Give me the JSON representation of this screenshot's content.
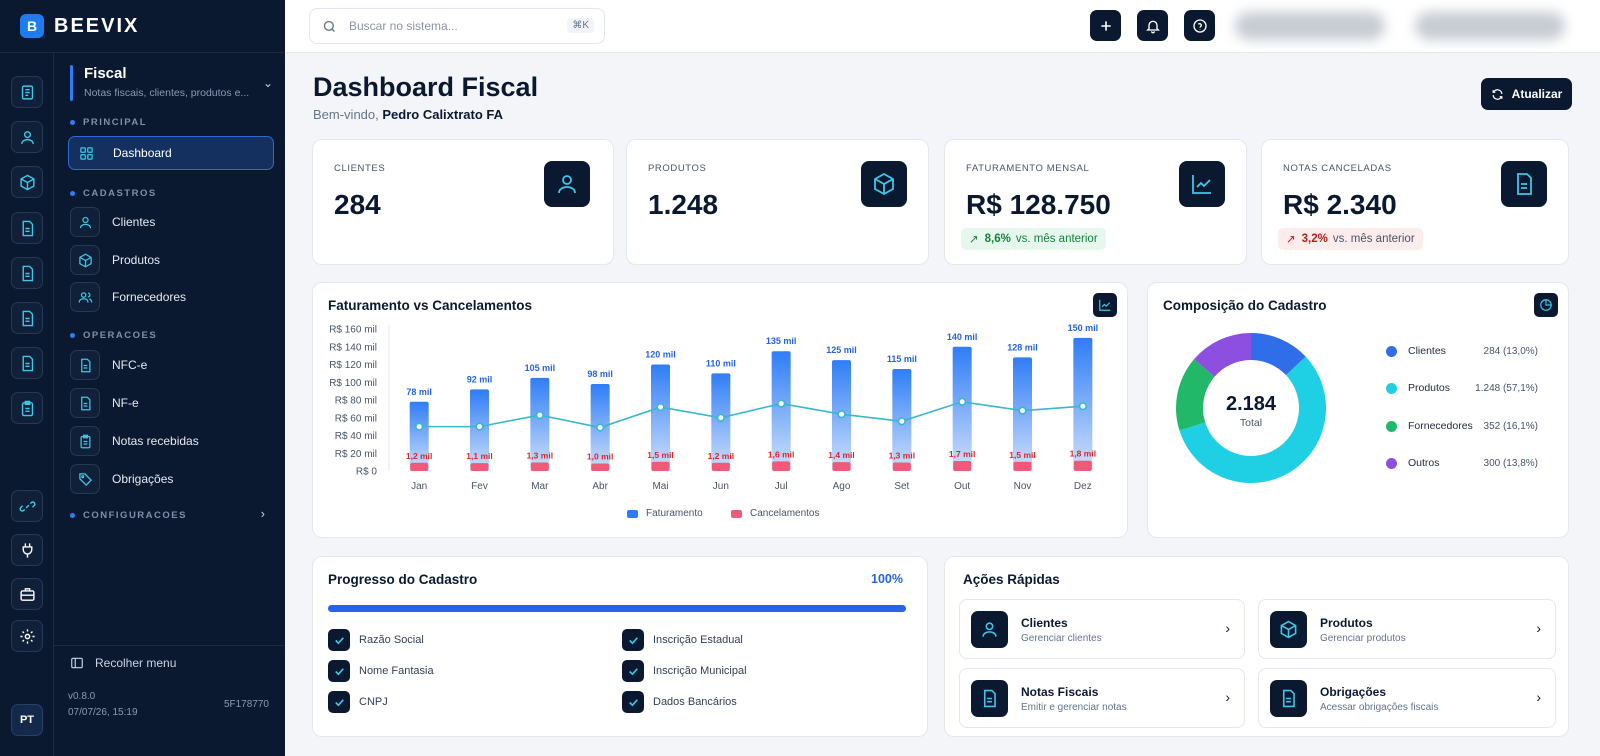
{
  "brand": {
    "name": "BEEVIX"
  },
  "sidebar": {
    "module_title": "Fiscal",
    "module_subtitle": "Notas fiscais, clientes, produtos e...",
    "sections": {
      "principal": "PRINCIPAL",
      "cadastros": "CADASTROS",
      "operacoes": "OPERACOES",
      "configuracoes": "CONFIGURACOES"
    },
    "items": {
      "dashboard": "Dashboard",
      "clientes": "Clientes",
      "produtos": "Produtos",
      "fornecedores": "Fornecedores",
      "nfce": "NFC-e",
      "nfe": "NF-e",
      "notas_recebidas": "Notas recebidas",
      "obrigacoes": "Obrigações"
    },
    "collapse_label": "Recolher menu",
    "version": "v0.8.0",
    "build_date": "07/07/26, 15:19",
    "build_hash": "5F178770",
    "user_initials": "PT"
  },
  "topbar": {
    "search_placeholder": "Buscar no sistema...",
    "search_shortcut": "⌘K"
  },
  "header": {
    "title": "Dashboard Fiscal",
    "welcome_prefix": "Bem-vindo,",
    "user_name": "Pedro Calixtrato FA",
    "refresh_label": "Atualizar"
  },
  "stats": [
    {
      "label": "CLIENTES",
      "value": "284",
      "icon": "user-icon"
    },
    {
      "label": "PRODUTOS",
      "value": "1.248",
      "icon": "box-icon"
    },
    {
      "label": "FATURAMENTO MENSAL",
      "value": "R$ 128.750",
      "icon": "trending-up-icon",
      "delta": "8,6%",
      "delta_text": "vs. mês anterior",
      "delta_direction": "up"
    },
    {
      "label": "NOTAS CANCELADAS",
      "value": "R$ 2.340",
      "icon": "document-icon",
      "delta": "3,2%",
      "delta_text": "vs. mês anterior",
      "delta_direction": "down"
    }
  ],
  "colors": {
    "navy": "#0b1930",
    "accent_blue": "#2563eb",
    "faturamento": "#2f7df6",
    "cancelamentos": "#f05a78",
    "line": "#3bb5d0",
    "donut_clientes": "#2f6ee8",
    "donut_produtos": "#1fcfe3",
    "donut_fornecedores": "#22b86a",
    "donut_outros": "#8c4fe0"
  },
  "revenue_chart": {
    "title": "Faturamento vs Cancelamentos",
    "legend_faturamento": "Faturamento",
    "legend_cancelamentos": "Cancelamentos"
  },
  "composition": {
    "title": "Composição do Cadastro",
    "total_value": "2.184",
    "total_label": "Total",
    "items": [
      {
        "label": "Clientes",
        "value": "284 (13,0%)"
      },
      {
        "label": "Produtos",
        "value": "1.248 (57,1%)"
      },
      {
        "label": "Fornecedores",
        "value": "352 (16,1%)"
      },
      {
        "label": "Outros",
        "value": "300 (13,8%)"
      }
    ]
  },
  "progress": {
    "title": "Progresso do Cadastro",
    "percent_label": "100%",
    "percent": 1.0,
    "items": [
      "Razão Social",
      "Nome Fantasia",
      "CNPJ",
      "Inscrição Estadual",
      "Inscrição Municipal",
      "Dados Bancários"
    ]
  },
  "quick_actions": {
    "title": "Ações Rápidas",
    "items": [
      {
        "title": "Clientes",
        "subtitle": "Gerenciar clientes"
      },
      {
        "title": "Produtos",
        "subtitle": "Gerenciar produtos"
      },
      {
        "title": "Notas Fiscais",
        "subtitle": "Emitir e gerenciar notas"
      },
      {
        "title": "Obrigações",
        "subtitle": "Acessar obrigações fiscais"
      }
    ]
  },
  "chart_data": [
    {
      "type": "bar",
      "title": "Faturamento vs Cancelamentos",
      "categories": [
        "Jan",
        "Fev",
        "Mar",
        "Abr",
        "Mai",
        "Jun",
        "Jul",
        "Ago",
        "Set",
        "Out",
        "Nov",
        "Dez"
      ],
      "y_ticks": [
        "R$ 0",
        "R$ 20 mil",
        "R$ 40 mil",
        "R$ 60 mil",
        "R$ 80 mil",
        "R$ 100 mil",
        "R$ 120 mil",
        "R$ 140 mil",
        "R$ 160 mil"
      ],
      "ylim": [
        0,
        160
      ],
      "series": [
        {
          "name": "Faturamento",
          "values": [
            78,
            92,
            105,
            98,
            120,
            110,
            135,
            125,
            115,
            140,
            128,
            150
          ],
          "labels": [
            "78 mil",
            "92 mil",
            "105 mil",
            "98 mil",
            "120 mil",
            "110 mil",
            "135 mil",
            "125 mil",
            "115 mil",
            "140 mil",
            "128 mil",
            "150 mil"
          ]
        },
        {
          "name": "Cancelamentos",
          "values": [
            1.2,
            1.1,
            1.3,
            1.0,
            1.5,
            1.2,
            1.6,
            1.4,
            1.3,
            1.7,
            1.5,
            1.8
          ],
          "labels": [
            "1,2 mil",
            "1,1 mil",
            "1,3 mil",
            "1,0 mil",
            "1,5 mil",
            "1,2 mil",
            "1,6 mil",
            "1,4 mil",
            "1,3 mil",
            "1,7 mil",
            "1,5 mil",
            "1,8 mil"
          ]
        }
      ],
      "line_values": [
        50,
        50,
        63,
        49,
        72,
        60,
        76,
        64,
        56,
        78,
        68,
        73
      ],
      "legend": "bottom",
      "grid": false
    },
    {
      "type": "pie",
      "title": "Composição do Cadastro",
      "categories": [
        "Clientes",
        "Produtos",
        "Fornecedores",
        "Outros"
      ],
      "values": [
        284,
        1248,
        352,
        300
      ],
      "legend": "right"
    }
  ]
}
